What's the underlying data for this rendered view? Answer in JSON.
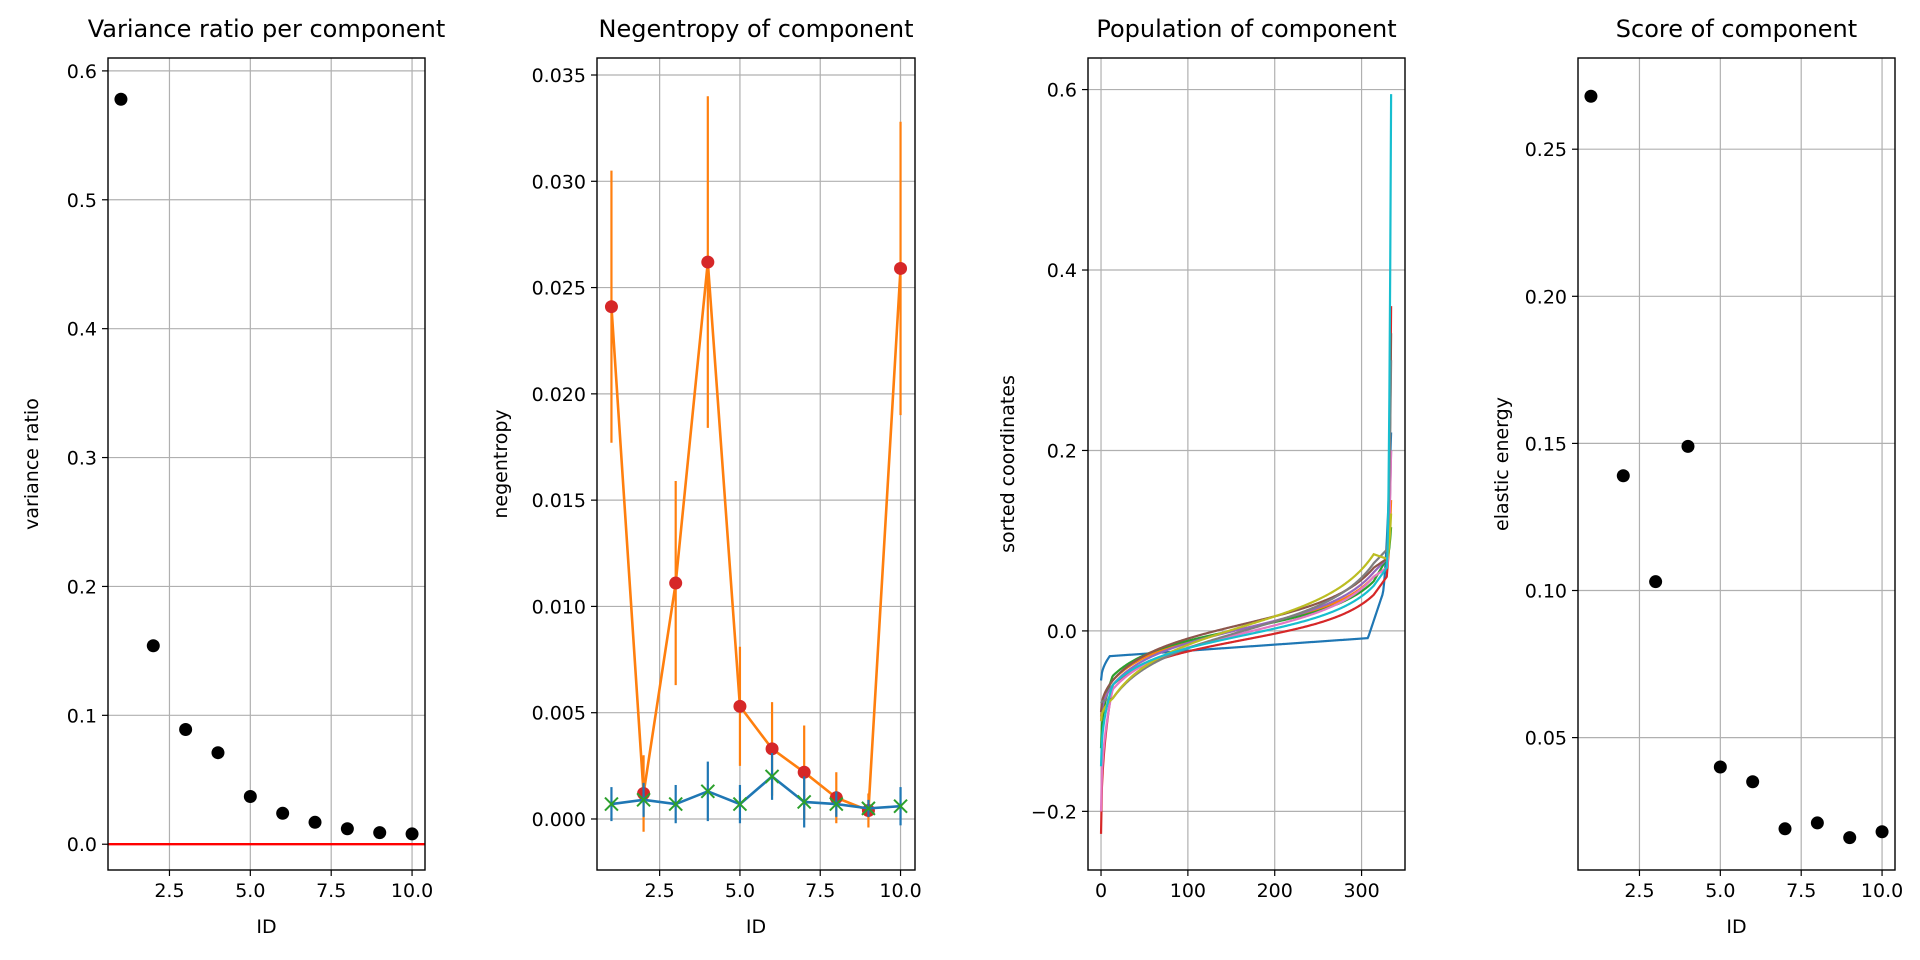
{
  "figure": {
    "background": "#ffffff",
    "grid_color": "#b0b0b0"
  },
  "chart_data": [
    {
      "type": "scatter",
      "title": "Variance ratio per component",
      "xlabel": "ID",
      "ylabel": "variance ratio",
      "xlim": [
        0.6,
        10.4
      ],
      "ylim": [
        -0.02,
        0.61
      ],
      "xticks": [
        2.5,
        5.0,
        7.5,
        10.0
      ],
      "xtick_labels": [
        "2.5",
        "5.0",
        "7.5",
        "10.0"
      ],
      "yticks": [
        0.0,
        0.1,
        0.2,
        0.3,
        0.4,
        0.5,
        0.6
      ],
      "ytick_labels": [
        "0.0",
        "0.1",
        "0.2",
        "0.3",
        "0.4",
        "0.5",
        "0.6"
      ],
      "grid": true,
      "series": [
        {
          "color": "#000000",
          "x": [
            1,
            2,
            3,
            4,
            5,
            6,
            7,
            8,
            9,
            10
          ],
          "y": [
            0.578,
            0.154,
            0.089,
            0.071,
            0.037,
            0.024,
            0.017,
            0.012,
            0.009,
            0.008
          ]
        }
      ],
      "hlines": [
        {
          "y": 0.0,
          "color": "#ff0000"
        }
      ]
    },
    {
      "type": "line",
      "title": "Negentropy of component",
      "xlabel": "ID",
      "ylabel": "negentropy",
      "xlim": [
        0.55,
        10.45
      ],
      "ylim": [
        -0.0024,
        0.0358
      ],
      "xticks": [
        2.5,
        5.0,
        7.5,
        10.0
      ],
      "xtick_labels": [
        "2.5",
        "5.0",
        "7.5",
        "10.0"
      ],
      "yticks": [
        0.0,
        0.005,
        0.01,
        0.015,
        0.02,
        0.025,
        0.03,
        0.035
      ],
      "ytick_labels": [
        "0.000",
        "0.005",
        "0.010",
        "0.015",
        "0.020",
        "0.025",
        "0.030",
        "0.035"
      ],
      "grid": true,
      "series": [
        {
          "color": "#ff7f0e",
          "marker": "circle",
          "marker_color": "#d62728",
          "x": [
            1,
            2,
            3,
            4,
            5,
            6,
            7,
            8,
            9,
            10
          ],
          "y": [
            0.0241,
            0.0012,
            0.0111,
            0.0262,
            0.0053,
            0.0033,
            0.0022,
            0.001,
            0.0004,
            0.0259
          ],
          "err": [
            0.0064,
            0.0018,
            0.0048,
            0.0078,
            0.0028,
            0.0022,
            0.0022,
            0.0012,
            0.0008,
            0.0069
          ]
        },
        {
          "color": "#1f77b4",
          "marker": "x",
          "marker_color": "#2ca02c",
          "x": [
            1,
            2,
            3,
            4,
            5,
            6,
            7,
            8,
            9,
            10
          ],
          "y": [
            0.0007,
            0.0009,
            0.0007,
            0.0013,
            0.0007,
            0.002,
            0.0008,
            0.0007,
            0.0005,
            0.0006
          ],
          "err": [
            0.0008,
            0.0008,
            0.0009,
            0.0014,
            0.0009,
            0.0011,
            0.0012,
            0.0006,
            0.0004,
            0.0009
          ]
        }
      ]
    },
    {
      "type": "line",
      "title": "Population of component",
      "xlabel": "",
      "ylabel": "sorted coordinates",
      "xlim": [
        -15,
        350
      ],
      "ylim": [
        -0.265,
        0.635
      ],
      "xticks": [
        0,
        100,
        200,
        300
      ],
      "xtick_labels": [
        "0",
        "100",
        "200",
        "300"
      ],
      "yticks": [
        -0.2,
        0.0,
        0.2,
        0.4,
        0.6
      ],
      "ytick_labels": [
        "−0.2",
        "0.0",
        "0.2",
        "0.4",
        "0.6"
      ],
      "grid": true,
      "n_points": 335,
      "series": [
        {
          "color": "#1f77b4",
          "low": -0.055,
          "high": 0.22,
          "left_plateau": -0.028,
          "right_plateau": -0.008,
          "tail": 0.04,
          "shape": "flat"
        },
        {
          "color": "#ff7f0e",
          "low": -0.095,
          "high": 0.145,
          "left_plateau": -0.055,
          "right_plateau": 0.06,
          "tail": 0.07,
          "shape": "tan"
        },
        {
          "color": "#2ca02c",
          "low": -0.13,
          "high": 0.115,
          "left_plateau": -0.05,
          "right_plateau": 0.055,
          "tail": 0.08,
          "shape": "tan"
        },
        {
          "color": "#d62728",
          "low": -0.225,
          "high": 0.36,
          "left_plateau": -0.06,
          "right_plateau": 0.04,
          "tail": 0.06,
          "shape": "tan"
        },
        {
          "color": "#9467bd",
          "low": -0.1,
          "high": 0.2,
          "left_plateau": -0.06,
          "right_plateau": 0.065,
          "tail": 0.08,
          "shape": "tan"
        },
        {
          "color": "#8c564b",
          "low": -0.09,
          "high": 0.33,
          "left_plateau": -0.055,
          "right_plateau": 0.07,
          "tail": 0.08,
          "shape": "tan"
        },
        {
          "color": "#e377c2",
          "low": -0.2,
          "high": 0.2,
          "left_plateau": -0.065,
          "right_plateau": 0.06,
          "tail": 0.07,
          "shape": "tan"
        },
        {
          "color": "#7f7f7f",
          "low": -0.08,
          "high": 0.3,
          "left_plateau": -0.075,
          "right_plateau": 0.075,
          "tail": 0.09,
          "shape": "tan"
        },
        {
          "color": "#bcbd22",
          "low": -0.1,
          "high": 0.13,
          "left_plateau": -0.075,
          "right_plateau": 0.085,
          "tail": 0.08,
          "shape": "tan"
        },
        {
          "color": "#17becf",
          "low": -0.15,
          "high": 0.595,
          "left_plateau": -0.06,
          "right_plateau": 0.05,
          "tail": 0.07,
          "shape": "tan"
        }
      ]
    },
    {
      "type": "scatter",
      "title": "Score of component",
      "xlabel": "ID",
      "ylabel": "elastic energy",
      "xlim": [
        0.6,
        10.4
      ],
      "ylim": [
        0.005,
        0.281
      ],
      "xticks": [
        2.5,
        5.0,
        7.5,
        10.0
      ],
      "xtick_labels": [
        "2.5",
        "5.0",
        "7.5",
        "10.0"
      ],
      "yticks": [
        0.05,
        0.1,
        0.15,
        0.2,
        0.25
      ],
      "ytick_labels": [
        "0.05",
        "0.10",
        "0.15",
        "0.20",
        "0.25"
      ],
      "grid": true,
      "series": [
        {
          "color": "#000000",
          "x": [
            1,
            2,
            3,
            4,
            5,
            6,
            7,
            8,
            9,
            10
          ],
          "y": [
            0.268,
            0.139,
            0.103,
            0.149,
            0.04,
            0.035,
            0.019,
            0.021,
            0.016,
            0.018
          ]
        }
      ]
    }
  ]
}
